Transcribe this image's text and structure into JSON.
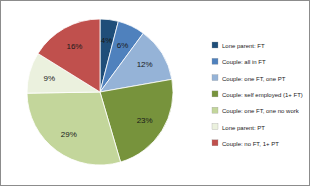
{
  "chart_data": {
    "type": "pie",
    "categories": [
      "Lone parent: FT",
      "Couple: all in FT",
      "Couple: one FT, one PT",
      "Couple: self employed (1+ FT)",
      "Couple: one FT, one no work",
      "Lone parent: PT",
      "Couple: no FT, 1+ PT"
    ],
    "values": [
      4,
      6,
      12,
      23,
      29,
      9,
      16
    ],
    "value_labels": [
      "4%",
      "6%",
      "12%",
      "23%",
      "29%",
      "9%",
      "16%"
    ],
    "colors": [
      "#1f4e79",
      "#4f81bd",
      "#95b3d7",
      "#77933c",
      "#c3d69b",
      "#ebf1de",
      "#c0504d"
    ],
    "data_labels": true,
    "legend": "right"
  }
}
